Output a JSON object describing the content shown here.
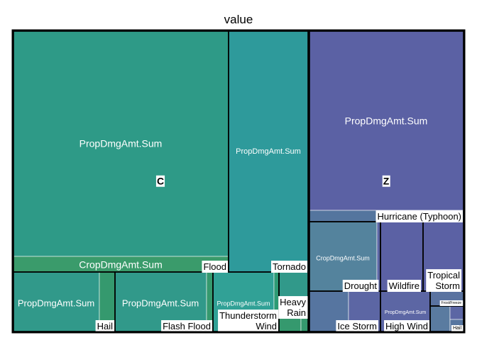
{
  "chart_data": {
    "type": "treemap",
    "title": "value",
    "groups": [
      {
        "name": "C",
        "color": "#2e9a87",
        "children": [
          {
            "name": "",
            "children": [
              {
                "name": "PropDmgAmt.Sum",
                "value": 2150,
                "color": "#2e9a87"
              },
              {
                "name": "CropDmgAmt.Sum",
                "value": 150,
                "color": "#3a9b6b"
              }
            ]
          },
          {
            "name": "Flood",
            "children": []
          },
          {
            "name": "Tornado",
            "children": [
              {
                "name": "PropDmgAmt.Sum",
                "value": 1200,
                "color": "#2e9a9b"
              }
            ]
          },
          {
            "name": "Hail",
            "children": [
              {
                "name": "PropDmgAmt.Sum",
                "value": 430,
                "color": "#31998a"
              },
              {
                "name": "CropDmgAmt.Sum",
                "value": 70,
                "color": "#35996e"
              }
            ]
          },
          {
            "name": "Flash Flood",
            "children": [
              {
                "name": "PropDmgAmt.Sum",
                "value": 460,
                "color": "#31998a"
              },
              {
                "name": "CropDmgAmt.Sum",
                "value": 30,
                "color": "#35996e"
              }
            ]
          },
          {
            "name": "Thunderstorm Wind",
            "children": [
              {
                "name": "PropDmgAmt.Sum",
                "value": 290,
                "color": "#31a196"
              },
              {
                "name": "CropDmgAmt.Sum",
                "value": 20,
                "color": "#2d9a74"
              }
            ]
          },
          {
            "name": "Heavy Rain",
            "children": [
              {
                "name": "PropDmgAmt.Sum",
                "value": 60,
                "color": "#31998a"
              },
              {
                "name": "CropDmgAmt.Sum",
                "value": 35,
                "color": "#35996e"
              }
            ]
          }
        ]
      },
      {
        "name": "Z",
        "color": "#5b61a4",
        "children": [
          {
            "name": "Hurricane (Typhoon)",
            "children": [
              {
                "name": "PropDmgAmt.Sum",
                "value": 2100,
                "color": "#5b61a4"
              },
              {
                "name": "CropDmgAmt.Sum",
                "value": 120,
                "color": "#54759e"
              }
            ]
          },
          {
            "name": "Drought",
            "children": [
              {
                "name": "CropDmgAmt.Sum",
                "value": 410,
                "color": "#54839d"
              },
              {
                "name": "PropDmgAmt.Sum",
                "value": 15,
                "color": "#5c66a4"
              }
            ]
          },
          {
            "name": "Wildfire",
            "children": [
              {
                "name": "PropDmgAmt.Sum",
                "value": 250,
                "color": "#5b61a4"
              }
            ]
          },
          {
            "name": "Tropical Storm",
            "children": [
              {
                "name": "PropDmgAmt.Sum",
                "value": 250,
                "color": "#5b61a4"
              }
            ]
          },
          {
            "name": "Ice Storm",
            "children": [
              {
                "name": "CropDmgAmt.Sum",
                "value": 135,
                "color": "#5675a0"
              },
              {
                "name": "PropDmgAmt.Sum",
                "value": 115,
                "color": "#5c66a4"
              }
            ]
          },
          {
            "name": "High Wind",
            "children": [
              {
                "name": "PropDmgAmt.Sum",
                "value": 175,
                "color": "#5c66a4"
              }
            ]
          },
          {
            "name": "Frost/Freeze",
            "children": []
          },
          {
            "name": "Hail",
            "children": []
          }
        ]
      }
    ]
  }
}
